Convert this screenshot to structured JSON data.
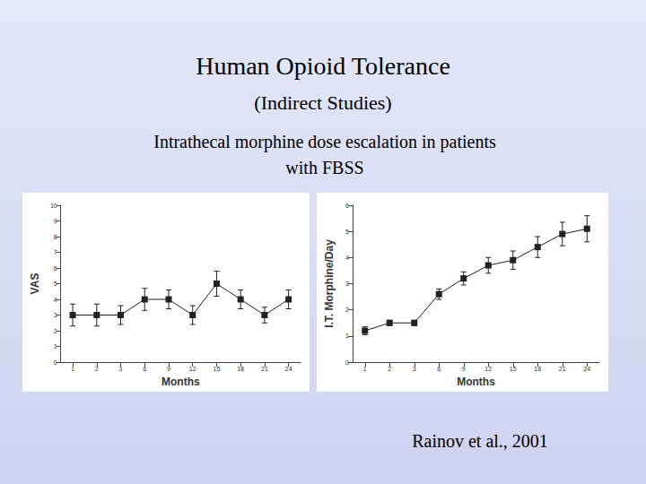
{
  "slide": {
    "title": "Human Opioid Tolerance",
    "subtitle": "(Indirect Studies)",
    "caption": "Intrathecal morphine dose escalation in patients with FBSS",
    "citation": "Rainov et al., 2001"
  },
  "chart_data": [
    {
      "type": "line",
      "x_label": "Months",
      "y_label": "VAS",
      "categories": [
        "1",
        "2",
        "3",
        "6",
        "9",
        "12",
        "15",
        "18",
        "21",
        "24"
      ],
      "values": [
        3,
        3,
        3,
        4,
        4,
        3,
        5,
        4,
        3,
        4
      ],
      "errors": [
        0.7,
        0.7,
        0.6,
        0.7,
        0.6,
        0.6,
        0.8,
        0.6,
        0.5,
        0.6
      ],
      "ylim": [
        0,
        10
      ],
      "yticks": [
        0,
        1,
        2,
        3,
        4,
        5,
        6,
        7,
        8,
        9,
        10
      ],
      "color": "#222222",
      "marker": "square",
      "grid": false
    },
    {
      "type": "line",
      "x_label": "Months",
      "y_label": "I.T. Morphine/Day",
      "categories": [
        "1",
        "2",
        "3",
        "6",
        "9",
        "12",
        "15",
        "18",
        "21",
        "24"
      ],
      "values": [
        1.2,
        1.5,
        1.5,
        2.6,
        3.2,
        3.7,
        3.9,
        4.4,
        4.9,
        5.1
      ],
      "errors": [
        0.15,
        0.1,
        0.1,
        0.2,
        0.25,
        0.3,
        0.35,
        0.4,
        0.45,
        0.5
      ],
      "ylim": [
        0,
        6
      ],
      "yticks": [
        0,
        1,
        2,
        3,
        4,
        5,
        6
      ],
      "color": "#222222",
      "marker": "square",
      "grid": false
    }
  ]
}
